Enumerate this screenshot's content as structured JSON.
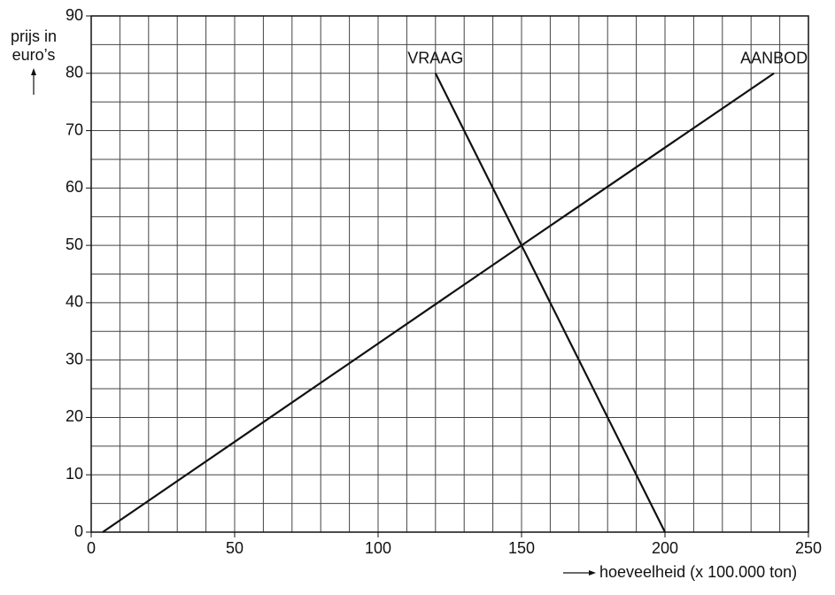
{
  "chart_data": {
    "type": "line",
    "ylabel": [
      "prijs in",
      "euro’s"
    ],
    "xlabel": "hoeveelheid (x 100.000 ton)",
    "xlim": [
      0,
      250
    ],
    "ylim": [
      0,
      90
    ],
    "xticks": [
      0,
      50,
      100,
      150,
      200,
      250
    ],
    "yticks": [
      0,
      10,
      20,
      30,
      40,
      50,
      60,
      70,
      80,
      90
    ],
    "x_gridlines": [
      10,
      20,
      30,
      40,
      50,
      60,
      70,
      80,
      90,
      100,
      110,
      120,
      130,
      140,
      150,
      160,
      170,
      180,
      190,
      200,
      210,
      220,
      230,
      240
    ],
    "y_gridlines": [
      5,
      10,
      15,
      20,
      25,
      30,
      35,
      40,
      45,
      50,
      55,
      60,
      65,
      70,
      75,
      80,
      85
    ],
    "grid": true,
    "series": [
      {
        "name": "VRAAG",
        "color": "#111111",
        "x": [
          120,
          150,
          200
        ],
        "values": [
          80,
          50,
          0
        ]
      },
      {
        "name": "AANBOD",
        "color": "#111111",
        "x": [
          4,
          150,
          238
        ],
        "values": [
          0,
          50,
          80
        ]
      }
    ]
  }
}
